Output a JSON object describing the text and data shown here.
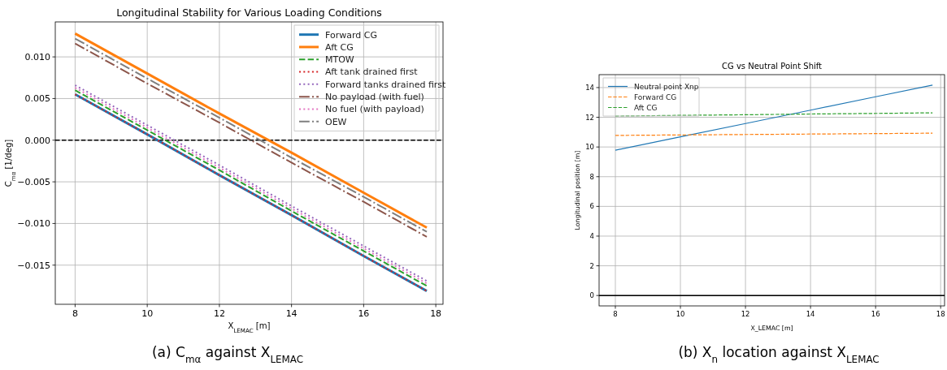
{
  "chart_data": [
    {
      "type": "line",
      "title": "Longitudinal Stability for Various Loading Conditions",
      "xlabel": "X$_{LEMAC}$ [m]",
      "ylabel": "C$_{mα}$ [1/deg]",
      "xlim": [
        7.45,
        18.2
      ],
      "ylim": [
        -0.0197,
        0.0142
      ],
      "xticks": [
        8,
        10,
        12,
        14,
        16,
        18
      ],
      "yticks": [
        {
          "value": -0.015,
          "label": "−0.015"
        },
        {
          "value": -0.01,
          "label": "−0.010"
        },
        {
          "value": -0.005,
          "label": "−0.005"
        },
        {
          "value": 0,
          "label": "0.000"
        },
        {
          "value": 0.005,
          "label": "0.005"
        },
        {
          "value": 0.01,
          "label": "0.010"
        }
      ],
      "x": [
        8,
        10,
        12,
        14,
        16,
        17.75
      ],
      "grid": true,
      "legend": "top right",
      "ref_lines": [
        {
          "axis": "y",
          "value": 0,
          "color": "#000000",
          "line_style": "dashed"
        }
      ],
      "annotations": [
        "(a) C$_{mα}$ against X$_{LEMAC}$"
      ],
      "series": [
        {
          "name": "Forward CG",
          "color": "#1f77b4",
          "values": [
            0.0055,
            0.0007,
            -0.0042,
            -0.009,
            -0.0139,
            -0.0181
          ],
          "line_style": "solid"
        },
        {
          "name": "Aft CG",
          "color": "#ff7f0e",
          "values": [
            0.0128,
            0.008,
            0.0032,
            -0.0015,
            -0.0063,
            -0.0105
          ],
          "line_style": "solid"
        },
        {
          "name": "MTOW",
          "color": "#2ca02c",
          "values": [
            0.006,
            0.0012,
            -0.0036,
            -0.0085,
            -0.0133,
            -0.0175
          ],
          "line_style": "dashed"
        },
        {
          "name": "Aft tank drained first",
          "color": "#d62728",
          "values": [
            0.0055,
            0.0007,
            -0.0042,
            -0.009,
            -0.0139,
            -0.0181
          ],
          "line_style": "dotted"
        },
        {
          "name": "Forward tanks drained first",
          "color": "#9467bd",
          "values": [
            0.0066,
            0.0018,
            -0.003,
            -0.0079,
            -0.0127,
            -0.0169
          ],
          "line_style": "dotted"
        },
        {
          "name": "No payload (with fuel)",
          "color": "#8c564b",
          "values": [
            0.0116,
            0.0068,
            0.0021,
            -0.0027,
            -0.0074,
            -0.0116
          ],
          "line_style": "dashdot"
        },
        {
          "name": "No fuel (with payload)",
          "color": "#e377c2",
          "values": [
            0.0063,
            0.0015,
            -0.0033,
            -0.0082,
            -0.013,
            -0.0172
          ],
          "line_style": "dotted"
        },
        {
          "name": "OEW",
          "color": "#7f7f7f",
          "values": [
            0.0122,
            0.0074,
            0.0027,
            -0.0021,
            -0.0068,
            -0.011
          ],
          "line_style": "dashdot"
        }
      ]
    },
    {
      "type": "line",
      "title": "CG vs Neutral Point Shift",
      "xlabel": "X_LEMAC [m]",
      "ylabel": "Longitudinal position [m]",
      "xlim": [
        7.5,
        18.12
      ],
      "ylim": [
        -0.7,
        14.87
      ],
      "xticks": [
        8,
        10,
        12,
        14,
        16,
        18
      ],
      "yticks": [
        0,
        2,
        4,
        6,
        8,
        10,
        12,
        14
      ],
      "x": [
        8,
        10,
        12,
        14,
        16,
        17.75
      ],
      "grid": true,
      "legend": "top left",
      "ref_lines": [
        {
          "axis": "y",
          "value": 0,
          "color": "#000000",
          "line_style": "solid"
        }
      ],
      "annotations": [
        "(b) X$_{n}$ location against X$_{LEMAC}$"
      ],
      "series": [
        {
          "name": "Neutral point Xnp",
          "color": "#1f77b4",
          "values": [
            9.78,
            10.68,
            11.58,
            12.48,
            13.38,
            14.17
          ],
          "line_style": "solid"
        },
        {
          "name": "Forward CG",
          "color": "#ff7f0e",
          "values": [
            10.78,
            10.81,
            10.84,
            10.87,
            10.9,
            10.93
          ],
          "line_style": "dashed"
        },
        {
          "name": "Aft CG",
          "color": "#2ca02c",
          "values": [
            12.08,
            12.13,
            12.17,
            12.22,
            12.26,
            12.3
          ],
          "line_style": "dashed"
        }
      ]
    }
  ]
}
